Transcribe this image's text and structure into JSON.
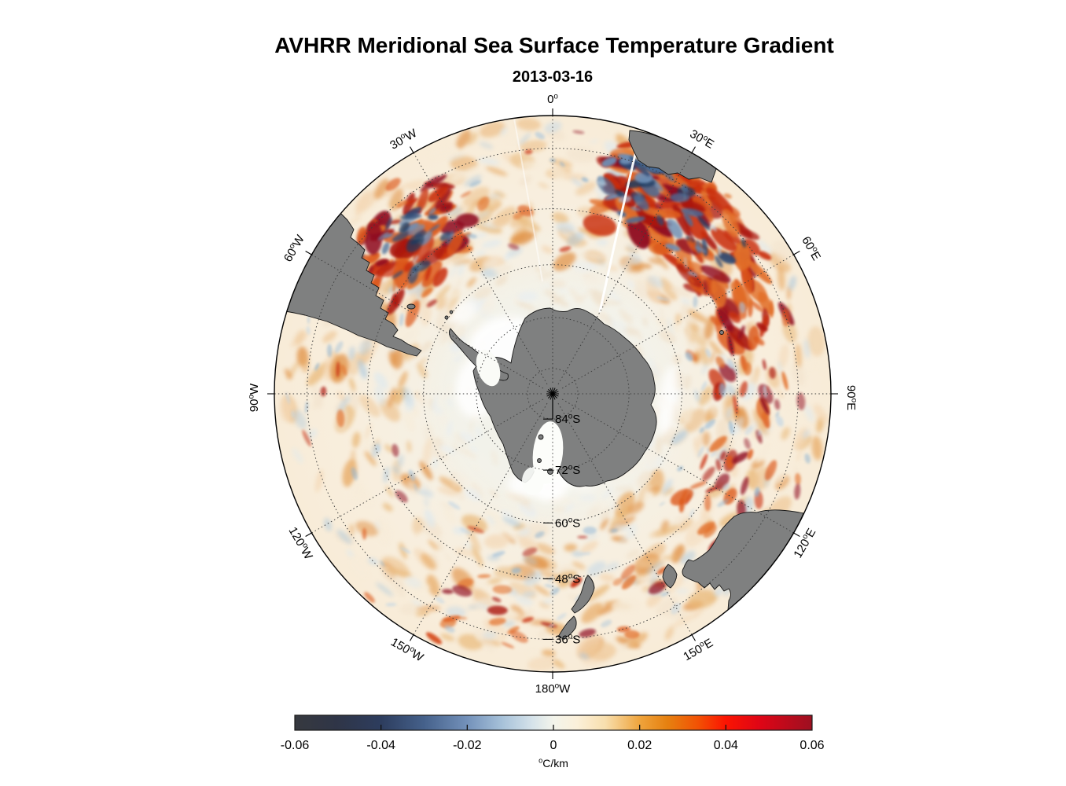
{
  "figure": {
    "title": "AVHRR Meridional Sea Surface Temperature Gradient",
    "subtitle": "2013-03-16"
  },
  "chart_data": {
    "type": "heatmap",
    "title": "AVHRR Meridional Sea Surface Temperature Gradient",
    "subtitle": "2013-03-16",
    "projection": "south-polar-stereographic",
    "boundary_lat_deg": -30,
    "texture_seed": 20130316,
    "parallels": [
      {
        "lat_deg": -84,
        "label": "84°S"
      },
      {
        "lat_deg": -72,
        "label": "72°S"
      },
      {
        "lat_deg": -60,
        "label": "60°S"
      },
      {
        "lat_deg": -48,
        "label": "48°S"
      },
      {
        "lat_deg": -36,
        "label": "36°S"
      }
    ],
    "meridians": [
      {
        "lon_deg": 0,
        "label": "0°"
      },
      {
        "lon_deg": 30,
        "label": "30°E"
      },
      {
        "lon_deg": 60,
        "label": "60°E"
      },
      {
        "lon_deg": 90,
        "label": "90°E"
      },
      {
        "lon_deg": 120,
        "label": "120°E"
      },
      {
        "lon_deg": 150,
        "label": "150°E"
      },
      {
        "lon_deg": 180,
        "label": "180°W"
      },
      {
        "lon_deg": -150,
        "label": "150°W"
      },
      {
        "lon_deg": -120,
        "label": "120°W"
      },
      {
        "lon_deg": -90,
        "label": "90°W"
      },
      {
        "lon_deg": -60,
        "label": "60°W"
      },
      {
        "lon_deg": -30,
        "label": "30°W"
      }
    ],
    "colorbar": {
      "unit_label": "°C/km",
      "min": -0.06,
      "max": 0.06,
      "ticks": [
        -0.06,
        -0.04,
        -0.02,
        0,
        0.02,
        0.04,
        0.06
      ],
      "tick_labels": [
        "-0.06",
        "-0.04",
        "-0.02",
        "0",
        "0.02",
        "0.04",
        "0.06"
      ],
      "gradient_stops": [
        {
          "pos": 0.0,
          "color": "#36393f"
        },
        {
          "pos": 0.08,
          "color": "#2f3547"
        },
        {
          "pos": 0.167,
          "color": "#2d3d5e"
        },
        {
          "pos": 0.25,
          "color": "#45618b"
        },
        {
          "pos": 0.333,
          "color": "#7391ba"
        },
        {
          "pos": 0.4,
          "color": "#a6c1d9"
        },
        {
          "pos": 0.46,
          "color": "#d6e3ea"
        },
        {
          "pos": 0.5,
          "color": "#f3f4eb"
        },
        {
          "pos": 0.545,
          "color": "#fbf0da"
        },
        {
          "pos": 0.6,
          "color": "#f8dfae"
        },
        {
          "pos": 0.667,
          "color": "#efa43c"
        },
        {
          "pos": 0.72,
          "color": "#e68110"
        },
        {
          "pos": 0.78,
          "color": "#f25104"
        },
        {
          "pos": 0.833,
          "color": "#fb1402"
        },
        {
          "pos": 0.9,
          "color": "#de0516"
        },
        {
          "pos": 1.0,
          "color": "#9d1021"
        }
      ]
    },
    "map_colors": {
      "land": "#7f8080",
      "coastline": "#161616",
      "ocean_base_center": "#f0f1ed",
      "ocean_base_outer": "#f8ecd8",
      "ice_white": "#ffffff",
      "graticule": "#3b3b3b",
      "boundary": "#000000"
    },
    "field_palettes": {
      "base": [
        "#f4d8b6",
        "#eec491",
        "#e8ab66",
        "#e08e41",
        "#f3e4cf",
        "#f7ecd9",
        "#e9b877"
      ],
      "blues_soft": [
        "#dde9f0",
        "#c6d9e7",
        "#aec9dd"
      ],
      "inner": [
        "#f3e7d5",
        "#efe0ca",
        "#f6f0e4",
        "#e9eef0"
      ],
      "strong": [
        "#dd5a1c",
        "#c92f10",
        "#ab150f",
        "#e2702a",
        "#901020"
      ],
      "navy": [
        "#2c4a75",
        "#1e3a61",
        "#4a6d99",
        "#6e8fb5"
      ],
      "blue_specks": [
        "#a9c4da",
        "#c2d6e5",
        "#8fb3d0"
      ]
    }
  }
}
